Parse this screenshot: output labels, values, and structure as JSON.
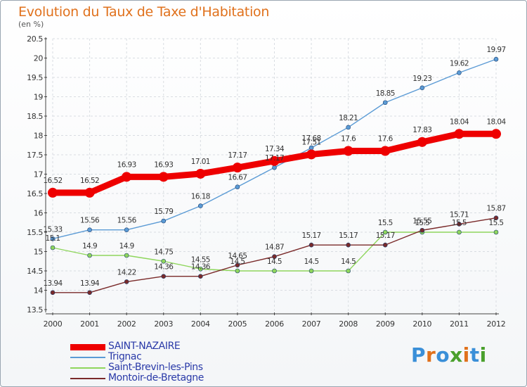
{
  "title": "Evolution du Taux de Taxe d'Habitation",
  "unit_label": "(en %)",
  "logo": {
    "text": "Proxiti",
    "colors": [
      "#3a8fd8",
      "#e0711c",
      "#3a8fd8",
      "#4aa02c",
      "#e0711c",
      "#3a8fd8",
      "#4aa02c"
    ]
  },
  "chart_data": {
    "type": "line",
    "title": "Evolution du Taux de Taxe d'Habitation",
    "ylabel": "(en %)",
    "xlabel": "",
    "x": [
      "2000",
      "2001",
      "2002",
      "2003",
      "2004",
      "2005",
      "2006",
      "2007",
      "2008",
      "2009",
      "2010",
      "2011",
      "2012"
    ],
    "ylim": [
      13.5,
      20.5
    ],
    "yticks": [
      13.5,
      14,
      14.5,
      15,
      15.5,
      16,
      16.5,
      17,
      17.5,
      18,
      18.5,
      19,
      19.5,
      20,
      20.5
    ],
    "grid": true,
    "legend_position": "bottom-left",
    "series": [
      {
        "name": "SAINT-NAZAIRE",
        "color": "#ee0000",
        "width": 9,
        "marker": 7,
        "values": [
          16.52,
          16.52,
          16.93,
          16.93,
          17.01,
          17.17,
          17.34,
          17.51,
          17.6,
          17.6,
          17.83,
          18.04,
          18.04
        ],
        "labels": [
          "16.52",
          "16.52",
          "16.93",
          "16.93",
          "17.01",
          "17.17",
          "17.34",
          "17.51",
          "17.6",
          "17.6",
          "17.83",
          "18.04",
          "18.04"
        ]
      },
      {
        "name": "Trignac",
        "color": "#5b9bd5",
        "width": 1.4,
        "marker": 3,
        "values": [
          15.33,
          15.56,
          15.56,
          15.79,
          16.18,
          16.67,
          17.17,
          17.68,
          18.21,
          18.85,
          19.23,
          19.62,
          19.97
        ],
        "labels": [
          "15.33",
          "15.56",
          "15.56",
          "15.79",
          "16.18",
          "16.67",
          "17.17",
          "17.68",
          "18.21",
          "18.85",
          "19.23",
          "19.62",
          "19.97"
        ]
      },
      {
        "name": "Saint-Brevin-les-Pins",
        "color": "#8fd65c",
        "width": 1.4,
        "marker": 3,
        "values": [
          15.1,
          14.9,
          14.9,
          14.75,
          14.55,
          14.5,
          14.5,
          14.5,
          14.5,
          15.5,
          15.5,
          15.5,
          15.5
        ],
        "labels": [
          "15.1",
          "14.9",
          "14.9",
          "14.75",
          "14.55",
          "14.5",
          "14.5",
          "14.5",
          "14.5",
          "15.5",
          "15.5",
          "15.5",
          "15.5"
        ]
      },
      {
        "name": "Montoir-de-Bretagne",
        "color": "#7a2a2a",
        "width": 1.4,
        "marker": 3,
        "values": [
          13.94,
          13.94,
          14.22,
          14.36,
          14.36,
          14.65,
          14.87,
          15.17,
          15.17,
          15.17,
          15.55,
          15.71,
          15.87
        ],
        "labels": [
          "13.94",
          "13.94",
          "14.22",
          "14.36",
          "14.36",
          "14.65",
          "14.87",
          "15.17",
          "15.17",
          "15.17",
          "15.55",
          "15.71",
          "15.87"
        ]
      }
    ]
  }
}
